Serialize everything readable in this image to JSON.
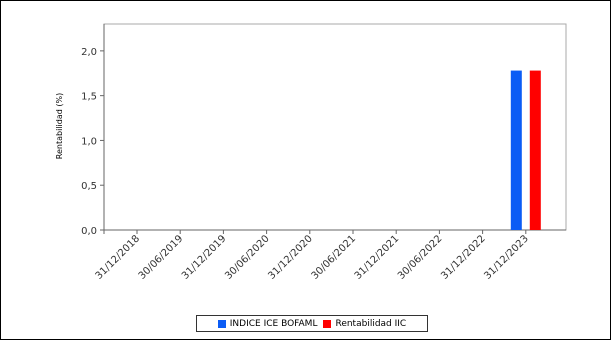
{
  "chart_data": {
    "type": "bar",
    "title": "",
    "xlabel": "",
    "ylabel": "Rentabilidad (%)",
    "ylim": [
      0,
      2.3
    ],
    "yticks": [
      "0,0",
      "0,5",
      "1,0",
      "1,5",
      "2,0"
    ],
    "ytick_values": [
      0,
      0.5,
      1.0,
      1.5,
      2.0
    ],
    "categories": [
      "31/12/2018",
      "30/06/2019",
      "31/12/2019",
      "30/06/2020",
      "31/12/2020",
      "30/06/2021",
      "31/12/2021",
      "30/06/2022",
      "31/12/2022",
      "31/12/2023"
    ],
    "series": [
      {
        "name": "INDICE ICE BOFAML",
        "color": "#0b5cf5",
        "values": [
          null,
          null,
          null,
          null,
          null,
          null,
          null,
          null,
          null,
          1.78
        ]
      },
      {
        "name": "Rentabilidad IIC",
        "color": "#ff0000",
        "values": [
          null,
          null,
          null,
          null,
          null,
          null,
          null,
          null,
          null,
          1.78
        ]
      }
    ],
    "grid": false,
    "legend_position": "bottom"
  }
}
